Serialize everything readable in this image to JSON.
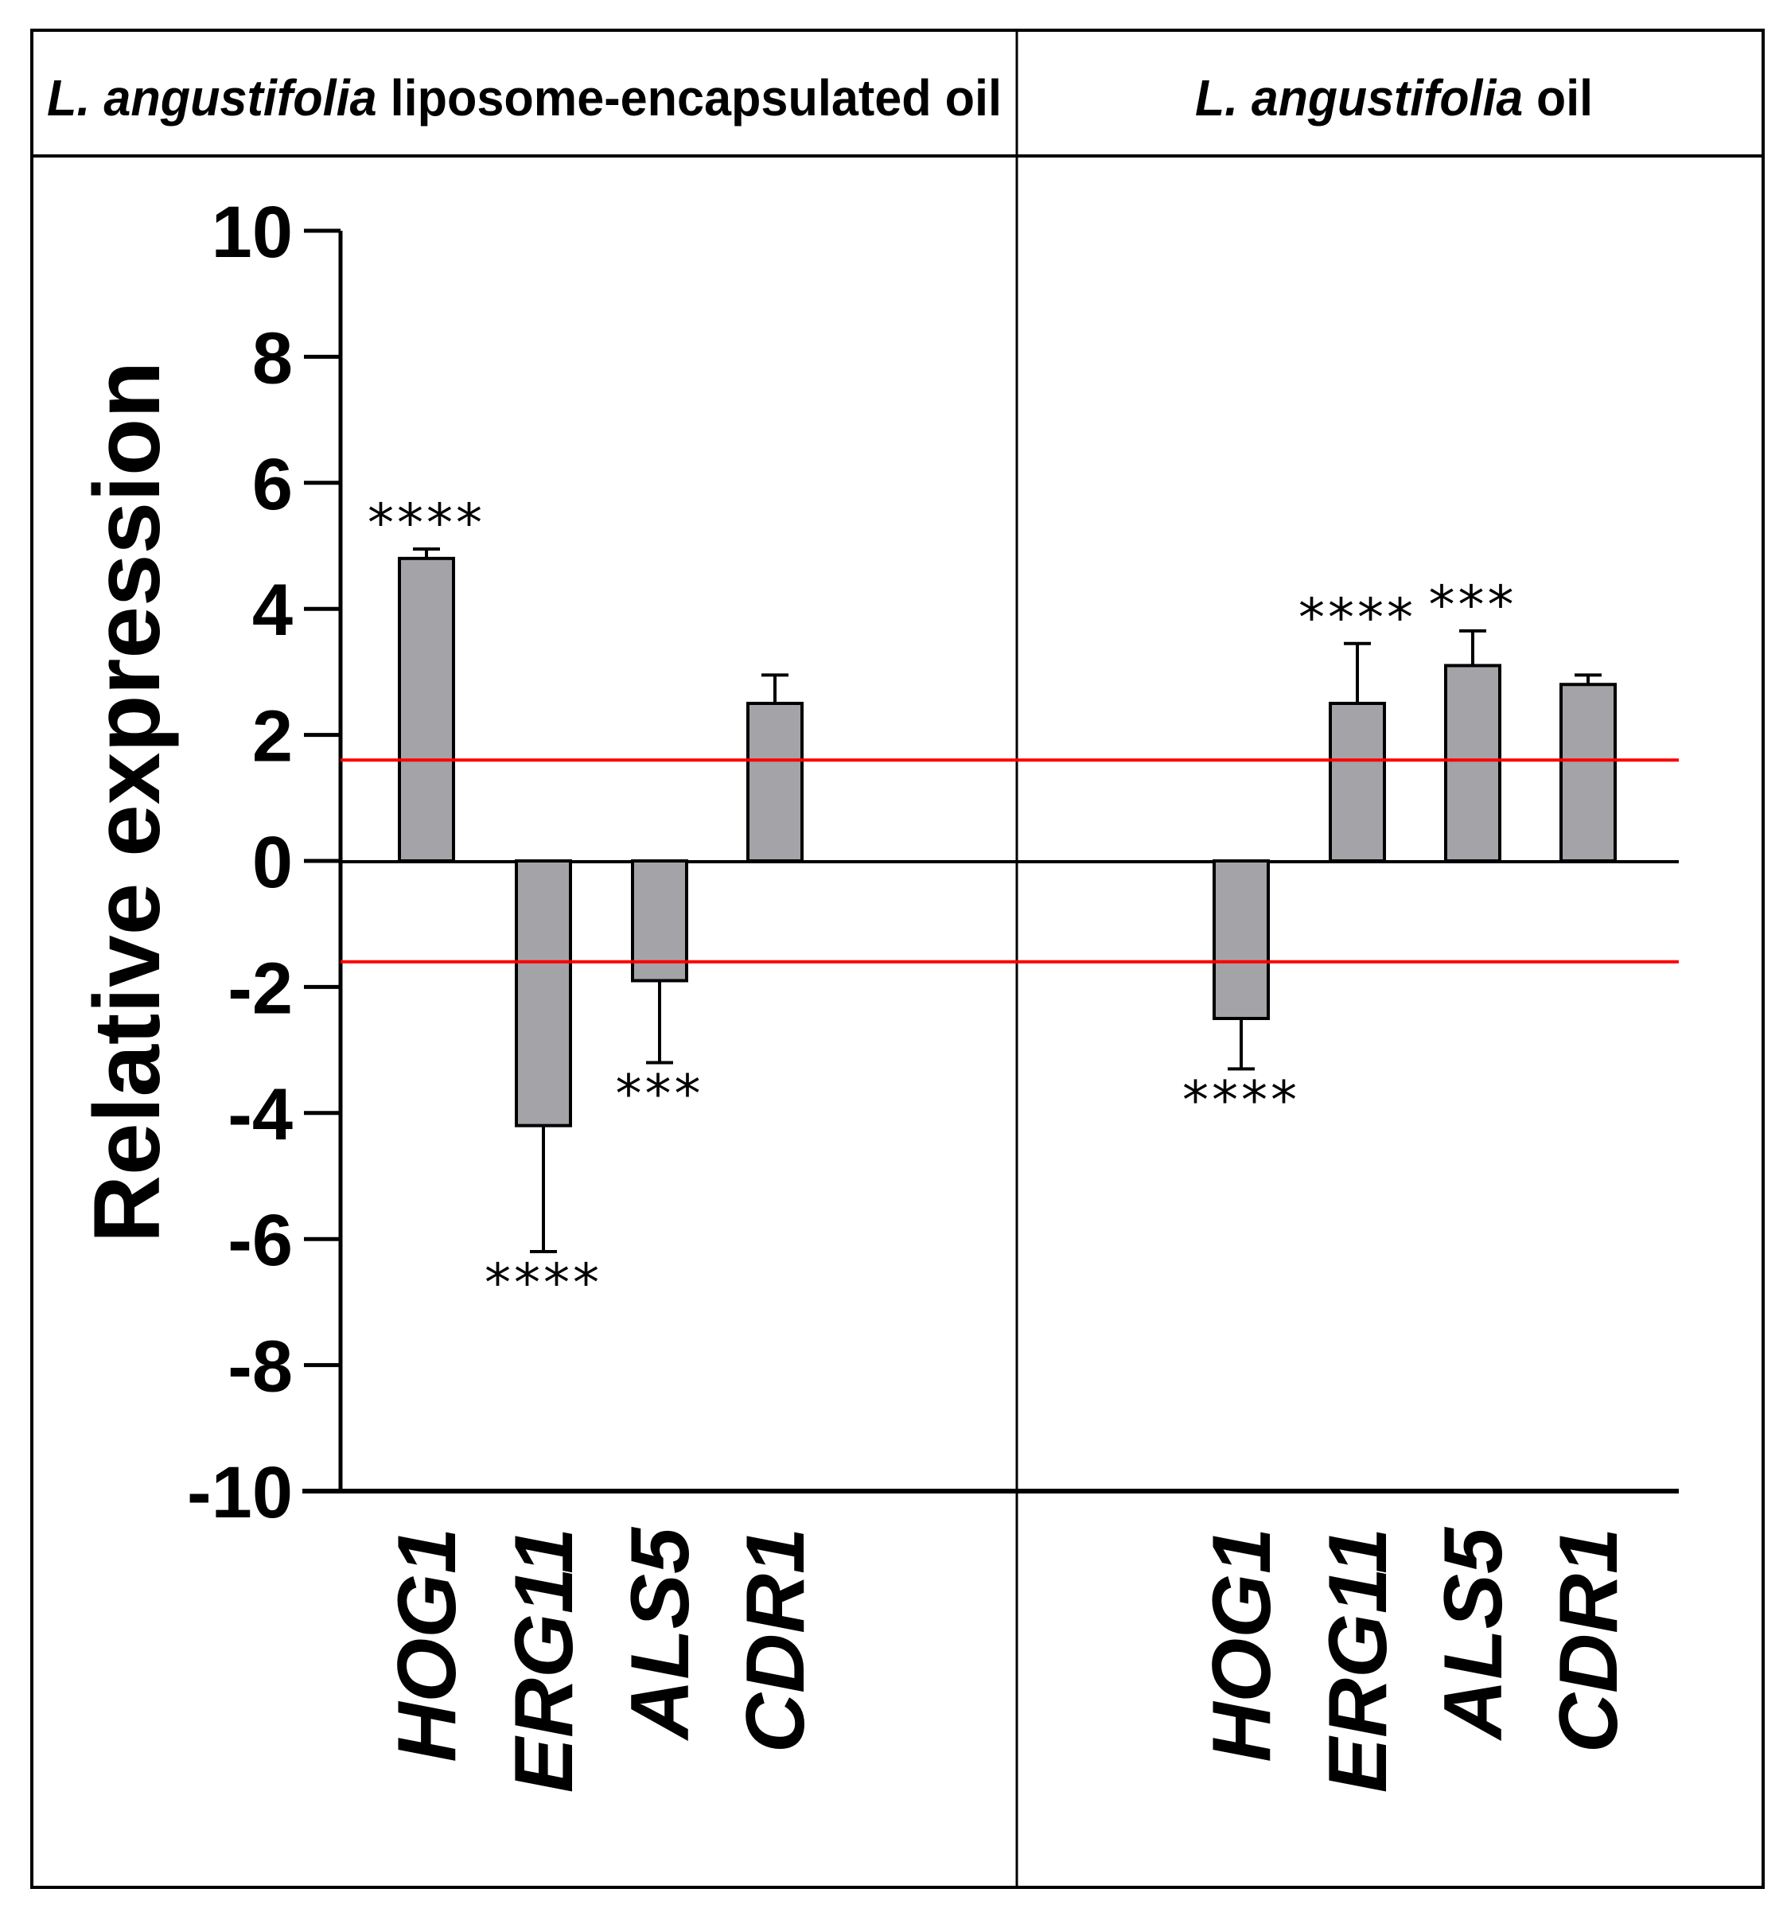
{
  "chart_data": {
    "type": "bar",
    "ylabel": "Relative expression",
    "ylim": [
      -10,
      10
    ],
    "yticks": [
      "10",
      "8",
      "6",
      "4",
      "2",
      "0",
      "-2",
      "-4",
      "-6",
      "-8",
      "-10"
    ],
    "threshold_lines": [
      1.6,
      -1.6
    ],
    "threshold_color": "#ff0000",
    "bar_color": "#a3a3a8",
    "panels": [
      {
        "title_italic": "L. angustifolia",
        "title_rest": " liposome-encapsulated oil",
        "categories": [
          "HOG1",
          "ERG11",
          "ALS5",
          "CDR1"
        ],
        "values": [
          4.8,
          -4.2,
          -1.9,
          2.5
        ],
        "errors": [
          0.15,
          2.0,
          1.3,
          0.45
        ],
        "significance": [
          "****",
          "****",
          "***",
          ""
        ]
      },
      {
        "title_italic": "L. angustifolia",
        "title_rest": " oil",
        "categories": [
          "HOG1",
          "ERG11",
          "ALS5",
          "CDR1"
        ],
        "values": [
          -2.5,
          2.5,
          3.1,
          2.8
        ],
        "errors": [
          0.8,
          0.95,
          0.55,
          0.15
        ],
        "significance": [
          "****",
          "****",
          "***",
          ""
        ]
      }
    ]
  }
}
